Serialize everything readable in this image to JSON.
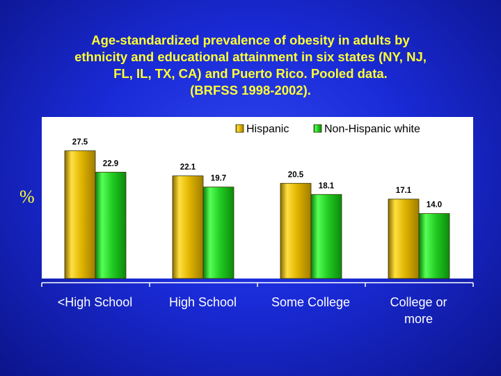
{
  "title_lines": [
    "Age-standardized prevalence of obesity in adults by",
    "ethnicity and educational attainment in six states (NY, NJ,",
    "FL, IL, TX, CA) and Puerto Rico. Pooled data.",
    "(BRFSS 1998-2002)."
  ],
  "colors": {
    "background": "#1a2bd8",
    "title": "#ffff33",
    "hispanic": "#d6a800",
    "non_hispanic_white": "#22cc22"
  },
  "chart_data": {
    "type": "bar",
    "title": "Age-standardized prevalence of obesity in adults by ethnicity and educational attainment in six states (NY, NJ, FL, IL, TX, CA) and Puerto Rico. Pooled data. (BRFSS 1998-2002).",
    "ylabel": "%",
    "xlabel": "",
    "categories": [
      "<High School",
      "High School",
      "Some College",
      "College or more"
    ],
    "category_lines": [
      [
        "<High School"
      ],
      [
        "High School"
      ],
      [
        "Some College"
      ],
      [
        "College or",
        "more"
      ]
    ],
    "series": [
      {
        "name": "Hispanic",
        "values": [
          27.5,
          22.1,
          20.5,
          17.1
        ],
        "labels": [
          "27.5",
          "22.1",
          "20.5",
          "17.1"
        ]
      },
      {
        "name": "Non-Hispanic white",
        "values": [
          22.9,
          19.7,
          18.1,
          14.0
        ],
        "labels": [
          "22.9",
          "19.7",
          "18.1",
          "14.0"
        ]
      }
    ],
    "ylim": [
      0,
      32
    ],
    "grid": false,
    "legend": "top-right",
    "data_labels": true
  }
}
